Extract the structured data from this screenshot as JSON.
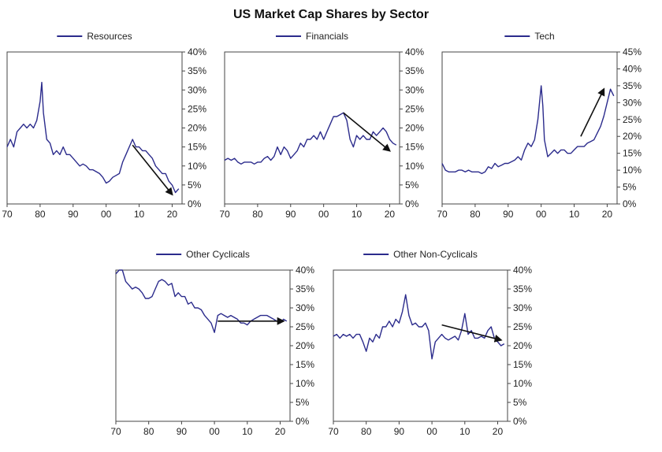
{
  "title": "US Market Cap Shares by Sector",
  "colors": {
    "series": "#2b2b8c",
    "frame": "#444444",
    "arrow": "#111111"
  },
  "chart_data": [
    {
      "type": "line",
      "series": [
        {
          "name": "Resources",
          "x": [
            1970,
            1971,
            1972,
            1973,
            1974,
            1975,
            1976,
            1977,
            1978,
            1979,
            1980,
            1980.5,
            1981,
            1982,
            1983,
            1984,
            1985,
            1986,
            1987,
            1988,
            1989,
            1990,
            1991,
            1992,
            1993,
            1994,
            1995,
            1996,
            1997,
            1998,
            1999,
            2000,
            2001,
            2002,
            2003,
            2004,
            2005,
            2006,
            2007,
            2008,
            2009,
            2010,
            2011,
            2012,
            2013,
            2014,
            2015,
            2016,
            2017,
            2018,
            2019,
            2020,
            2021,
            2022
          ],
          "y": [
            15,
            17,
            15,
            19,
            20,
            21,
            20,
            21,
            20,
            22,
            27,
            32,
            24,
            17,
            16,
            13,
            14,
            13,
            15,
            13,
            13,
            12,
            11,
            10,
            10.5,
            10,
            9,
            9,
            8.5,
            8,
            7,
            5.5,
            6,
            7,
            7.5,
            8,
            11,
            13,
            15,
            17,
            15,
            15,
            14,
            14,
            13,
            12,
            10,
            9,
            8,
            8,
            6,
            5,
            3,
            4
          ]
        }
      ],
      "ylim": [
        0,
        40
      ],
      "yticks": [
        "0%",
        "5%",
        "10%",
        "15%",
        "20%",
        "25%",
        "30%",
        "35%",
        "40%"
      ],
      "xticks": [
        "70",
        "80",
        "90",
        "00",
        "10",
        "20"
      ],
      "annotation": {
        "type": "arrow",
        "from": [
          2008,
          15.5
        ],
        "to": [
          2020,
          2.5
        ]
      }
    },
    {
      "type": "line",
      "series": [
        {
          "name": "Financials",
          "x": [
            1970,
            1971,
            1972,
            1973,
            1974,
            1975,
            1976,
            1977,
            1978,
            1979,
            1980,
            1981,
            1982,
            1983,
            1984,
            1985,
            1986,
            1987,
            1988,
            1989,
            1990,
            1991,
            1992,
            1993,
            1994,
            1995,
            1996,
            1997,
            1998,
            1999,
            2000,
            2001,
            2002,
            2003,
            2004,
            2005,
            2006,
            2007,
            2008,
            2009,
            2010,
            2011,
            2012,
            2013,
            2014,
            2015,
            2016,
            2017,
            2018,
            2019,
            2020,
            2021,
            2022
          ],
          "y": [
            11.5,
            12,
            11.5,
            12,
            11,
            10.5,
            11,
            11,
            11,
            10.5,
            11,
            11,
            12,
            12.5,
            11.5,
            12.5,
            15,
            13,
            15,
            14,
            12,
            13,
            14,
            16,
            15,
            17,
            17,
            18,
            17,
            19,
            17,
            19,
            21,
            23,
            23,
            23.5,
            24,
            22,
            17,
            15,
            18,
            17,
            18,
            17,
            17,
            19,
            18,
            19,
            20,
            19,
            17,
            16,
            15.5
          ]
        }
      ],
      "ylim": [
        0,
        40
      ],
      "yticks": [
        "0%",
        "5%",
        "10%",
        "15%",
        "20%",
        "25%",
        "30%",
        "35%",
        "40%"
      ],
      "xticks": [
        "70",
        "80",
        "90",
        "00",
        "10",
        "20"
      ],
      "annotation": {
        "type": "arrow",
        "from": [
          2006,
          24
        ],
        "to": [
          2020,
          14
        ]
      }
    },
    {
      "type": "line",
      "series": [
        {
          "name": "Tech",
          "x": [
            1970,
            1971,
            1972,
            1973,
            1974,
            1975,
            1976,
            1977,
            1978,
            1979,
            1980,
            1981,
            1982,
            1983,
            1984,
            1985,
            1986,
            1987,
            1988,
            1989,
            1990,
            1991,
            1992,
            1993,
            1994,
            1995,
            1996,
            1997,
            1998,
            1999,
            1999.5,
            2000,
            2000.5,
            2001,
            2002,
            2003,
            2004,
            2005,
            2006,
            2007,
            2008,
            2009,
            2010,
            2011,
            2012,
            2013,
            2014,
            2015,
            2016,
            2017,
            2018,
            2019,
            2020,
            2021,
            2022
          ],
          "y": [
            12,
            10,
            9.5,
            9.5,
            9.5,
            10,
            10,
            9.5,
            10,
            9.5,
            9.5,
            9.5,
            9,
            9.5,
            11,
            10.5,
            12,
            11,
            11.5,
            12,
            12,
            12.5,
            13,
            14,
            13,
            16,
            18,
            17,
            19,
            25,
            30,
            35,
            29,
            19,
            14,
            15,
            16,
            15,
            16,
            16,
            15,
            15,
            16,
            17,
            17,
            17,
            18,
            18.5,
            19,
            21,
            23,
            26,
            30,
            34,
            32
          ]
        }
      ],
      "ylim": [
        0,
        45
      ],
      "yticks": [
        "0%",
        "5%",
        "10%",
        "15%",
        "20%",
        "25%",
        "30%",
        "35%",
        "40%",
        "45%"
      ],
      "xticks": [
        "70",
        "80",
        "90",
        "00",
        "10",
        "20"
      ],
      "annotation": {
        "type": "arrow",
        "from": [
          2012,
          20
        ],
        "to": [
          2019,
          34
        ]
      }
    },
    {
      "type": "line",
      "series": [
        {
          "name": "Other Cyclicals",
          "x": [
            1970,
            1971,
            1972,
            1973,
            1974,
            1975,
            1976,
            1977,
            1978,
            1979,
            1980,
            1981,
            1982,
            1983,
            1984,
            1985,
            1986,
            1987,
            1988,
            1989,
            1990,
            1991,
            1992,
            1993,
            1994,
            1995,
            1996,
            1997,
            1998,
            1999,
            2000,
            2001,
            2002,
            2003,
            2004,
            2005,
            2006,
            2007,
            2008,
            2009,
            2010,
            2011,
            2012,
            2013,
            2014,
            2015,
            2016,
            2017,
            2018,
            2019,
            2020,
            2021,
            2022
          ],
          "y": [
            39,
            40,
            40,
            37,
            36,
            35,
            35.5,
            35,
            34,
            32.5,
            32.5,
            33,
            35,
            37,
            37.5,
            37,
            36,
            36.5,
            33,
            34,
            33,
            33,
            31,
            31.5,
            30,
            30,
            29.5,
            28,
            27,
            26,
            23.5,
            28,
            28.5,
            28,
            27.5,
            28,
            27.5,
            27,
            26,
            26,
            25.5,
            26.5,
            27,
            27.5,
            28,
            28,
            28,
            27.5,
            27,
            26.5,
            26,
            27,
            26.5
          ]
        }
      ],
      "ylim": [
        0,
        40
      ],
      "yticks": [
        "0%",
        "5%",
        "10%",
        "15%",
        "20%",
        "25%",
        "30%",
        "35%",
        "40%"
      ],
      "xticks": [
        "70",
        "80",
        "90",
        "00",
        "10",
        "20"
      ],
      "annotation": {
        "type": "arrow",
        "from": [
          2001,
          26.5
        ],
        "to": [
          2021,
          26.5
        ]
      }
    },
    {
      "type": "line",
      "series": [
        {
          "name": "Other Non-Cyclicals",
          "x": [
            1970,
            1971,
            1972,
            1973,
            1974,
            1975,
            1976,
            1977,
            1978,
            1979,
            1980,
            1981,
            1982,
            1983,
            1984,
            1985,
            1986,
            1987,
            1988,
            1989,
            1990,
            1991,
            1992,
            1993,
            1994,
            1995,
            1996,
            1997,
            1998,
            1999,
            2000,
            2001,
            2002,
            2003,
            2004,
            2005,
            2006,
            2007,
            2008,
            2009,
            2010,
            2011,
            2012,
            2013,
            2014,
            2015,
            2016,
            2017,
            2018,
            2019,
            2020,
            2021,
            2022
          ],
          "y": [
            22.5,
            23,
            22,
            23,
            22.5,
            23,
            22,
            23,
            23,
            21,
            18.5,
            22,
            21,
            23,
            22,
            25,
            25,
            26.5,
            25,
            27,
            26,
            29,
            33.5,
            28,
            25.5,
            26,
            25,
            25,
            26,
            24,
            16.5,
            21,
            22,
            23,
            22,
            21.5,
            22,
            22.5,
            21.5,
            24,
            28.5,
            23,
            24,
            22,
            22,
            22.5,
            22,
            24,
            25,
            22,
            21,
            20,
            20.5
          ]
        }
      ],
      "ylim": [
        0,
        40
      ],
      "yticks": [
        "0%",
        "5%",
        "10%",
        "15%",
        "20%",
        "25%",
        "30%",
        "35%",
        "40%"
      ],
      "xticks": [
        "70",
        "80",
        "90",
        "00",
        "10",
        "20"
      ],
      "annotation": {
        "type": "arrow",
        "from": [
          2003,
          25.5
        ],
        "to": [
          2021,
          21.5
        ]
      }
    }
  ]
}
